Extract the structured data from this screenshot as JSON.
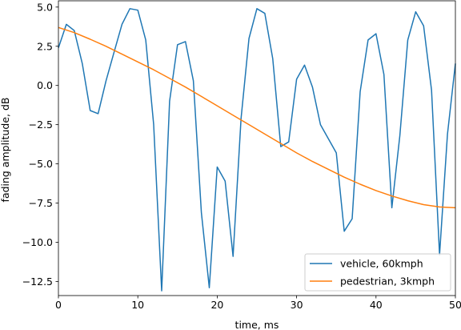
{
  "chart_data": {
    "type": "line",
    "title": "",
    "xlabel": "time, ms",
    "ylabel": "fading amplitude, dB",
    "xlim": [
      0,
      50
    ],
    "ylim": [
      -13.4,
      5.4
    ],
    "x_ticks": [
      0,
      10,
      20,
      30,
      40,
      50
    ],
    "x_tick_labels": [
      "0",
      "10",
      "20",
      "30",
      "40",
      "50"
    ],
    "y_ticks": [
      5.0,
      2.5,
      0.0,
      -2.5,
      -5.0,
      -7.5,
      -10.0,
      -12.5
    ],
    "y_tick_labels": [
      "5.0",
      "2.5",
      "0.0",
      "−2.5",
      "−5.0",
      "−7.5",
      "−10.0",
      "−12.5"
    ],
    "grid": false,
    "legend_position": "lower-right",
    "colors": {
      "vehicle": "#1f77b4",
      "pedestrian": "#ff7f0e"
    },
    "series": [
      {
        "name": "vehicle, 60kmph",
        "x": [
          0,
          1,
          2,
          3,
          4,
          5,
          6,
          7,
          8,
          9,
          10,
          11,
          12,
          13,
          14,
          15,
          16,
          17,
          18,
          19,
          20,
          21,
          22,
          23,
          24,
          25,
          26,
          27,
          28,
          29,
          30,
          31,
          32,
          33,
          34,
          35,
          36,
          37,
          38,
          39,
          40,
          41,
          42,
          43,
          44,
          45,
          46,
          47,
          48,
          49,
          50
        ],
        "y": [
          2.4,
          3.9,
          3.5,
          1.4,
          -1.6,
          -1.8,
          0.3,
          2.1,
          3.9,
          4.9,
          4.8,
          2.9,
          -2.5,
          -13.1,
          -1.0,
          2.6,
          2.8,
          0.3,
          -8.1,
          -12.9,
          -5.2,
          -6.1,
          -10.9,
          -2.1,
          3.0,
          4.9,
          4.6,
          1.7,
          -3.9,
          -3.6,
          0.4,
          1.3,
          -0.1,
          -2.5,
          -3.4,
          -4.3,
          -9.3,
          -8.5,
          -0.4,
          2.9,
          3.3,
          0.7,
          -7.8,
          -3.2,
          2.9,
          4.7,
          3.8,
          -0.3,
          -10.8,
          -3.1,
          1.4
        ]
      },
      {
        "name": "pedestrian, 3kmph",
        "x": [
          0,
          2,
          4,
          6,
          8,
          10,
          12,
          14,
          16,
          18,
          20,
          22,
          24,
          26,
          28,
          30,
          32,
          34,
          36,
          38,
          40,
          42,
          44,
          46,
          48,
          50
        ],
        "y": [
          3.7,
          3.37,
          2.95,
          2.5,
          2.0,
          1.5,
          1.0,
          0.45,
          -0.1,
          -0.7,
          -1.3,
          -1.9,
          -2.5,
          -3.1,
          -3.7,
          -4.3,
          -4.85,
          -5.35,
          -5.85,
          -6.3,
          -6.7,
          -7.05,
          -7.35,
          -7.6,
          -7.75,
          -7.8
        ]
      }
    ]
  }
}
